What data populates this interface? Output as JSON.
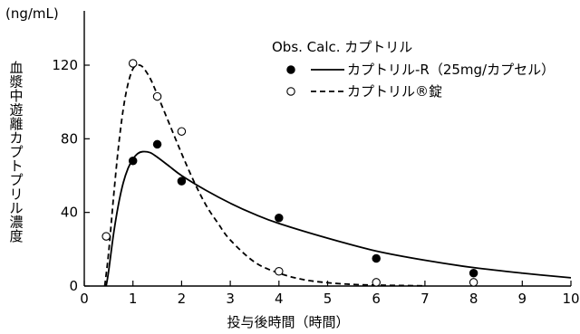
{
  "chart_data": {
    "type": "line",
    "unit_label": "(ng/mL)",
    "ylabel": "血漿中遊離カプトプリル濃度",
    "xlabel": "投与後時間（時間）",
    "xlim": [
      0,
      10
    ],
    "ylim": [
      0,
      140
    ],
    "x_ticks": [
      0,
      1,
      2,
      3,
      4,
      5,
      6,
      7,
      8,
      9,
      10
    ],
    "x_tick_labels": [
      "0",
      "1",
      "2",
      "3",
      "4",
      "5",
      "6",
      "7",
      "8",
      "9",
      "10"
    ],
    "y_ticks": [
      0,
      40,
      80,
      120
    ],
    "y_tick_labels": [
      "0",
      "40",
      "80",
      "120"
    ],
    "legend": {
      "header": "Obs. Calc. カプトリル",
      "placement": "top-right"
    },
    "series": [
      {
        "name": "カプトリル-R（25mg/カプセル）",
        "marker": "filled-circle",
        "line_style": "solid",
        "observed": [
          {
            "x": 1.0,
            "y": 68
          },
          {
            "x": 1.5,
            "y": 77
          },
          {
            "x": 2.0,
            "y": 57
          },
          {
            "x": 4.0,
            "y": 37
          },
          {
            "x": 6.0,
            "y": 15
          },
          {
            "x": 8.0,
            "y": 7
          }
        ],
        "calculated": [
          {
            "x": 0.45,
            "y": 0
          },
          {
            "x": 0.5,
            "y": 8
          },
          {
            "x": 0.6,
            "y": 28
          },
          {
            "x": 0.7,
            "y": 44
          },
          {
            "x": 0.8,
            "y": 56
          },
          {
            "x": 0.9,
            "y": 64
          },
          {
            "x": 1.0,
            "y": 69
          },
          {
            "x": 1.1,
            "y": 72
          },
          {
            "x": 1.2,
            "y": 73
          },
          {
            "x": 1.35,
            "y": 72.5
          },
          {
            "x": 1.5,
            "y": 70
          },
          {
            "x": 1.75,
            "y": 65
          },
          {
            "x": 2.0,
            "y": 60
          },
          {
            "x": 2.5,
            "y": 52
          },
          {
            "x": 3.0,
            "y": 45
          },
          {
            "x": 3.5,
            "y": 39
          },
          {
            "x": 4.0,
            "y": 34
          },
          {
            "x": 5.0,
            "y": 26
          },
          {
            "x": 6.0,
            "y": 19
          },
          {
            "x": 7.0,
            "y": 14
          },
          {
            "x": 8.0,
            "y": 10
          },
          {
            "x": 9.0,
            "y": 7
          },
          {
            "x": 10.0,
            "y": 4.5
          }
        ]
      },
      {
        "name": "カプトリル®錠",
        "marker": "open-circle",
        "line_style": "dashed",
        "observed": [
          {
            "x": 0.45,
            "y": 27
          },
          {
            "x": 1.0,
            "y": 121
          },
          {
            "x": 1.5,
            "y": 103
          },
          {
            "x": 2.0,
            "y": 84
          },
          {
            "x": 4.0,
            "y": 8
          },
          {
            "x": 6.0,
            "y": 2
          },
          {
            "x": 8.0,
            "y": 2
          }
        ],
        "calculated": [
          {
            "x": 0.42,
            "y": 0
          },
          {
            "x": 0.5,
            "y": 18
          },
          {
            "x": 0.6,
            "y": 48
          },
          {
            "x": 0.7,
            "y": 75
          },
          {
            "x": 0.8,
            "y": 96
          },
          {
            "x": 0.9,
            "y": 110
          },
          {
            "x": 1.0,
            "y": 118
          },
          {
            "x": 1.1,
            "y": 120
          },
          {
            "x": 1.2,
            "y": 119
          },
          {
            "x": 1.35,
            "y": 113
          },
          {
            "x": 1.5,
            "y": 104
          },
          {
            "x": 1.75,
            "y": 88
          },
          {
            "x": 2.0,
            "y": 72
          },
          {
            "x": 2.25,
            "y": 57
          },
          {
            "x": 2.5,
            "y": 44
          },
          {
            "x": 2.75,
            "y": 34
          },
          {
            "x": 3.0,
            "y": 25
          },
          {
            "x": 3.5,
            "y": 13
          },
          {
            "x": 4.0,
            "y": 7
          },
          {
            "x": 4.5,
            "y": 3.5
          },
          {
            "x": 5.0,
            "y": 1.8
          },
          {
            "x": 5.5,
            "y": 0.9
          },
          {
            "x": 6.0,
            "y": 0.5
          },
          {
            "x": 6.5,
            "y": 0.3
          },
          {
            "x": 7.0,
            "y": 0.1
          }
        ]
      }
    ]
  }
}
